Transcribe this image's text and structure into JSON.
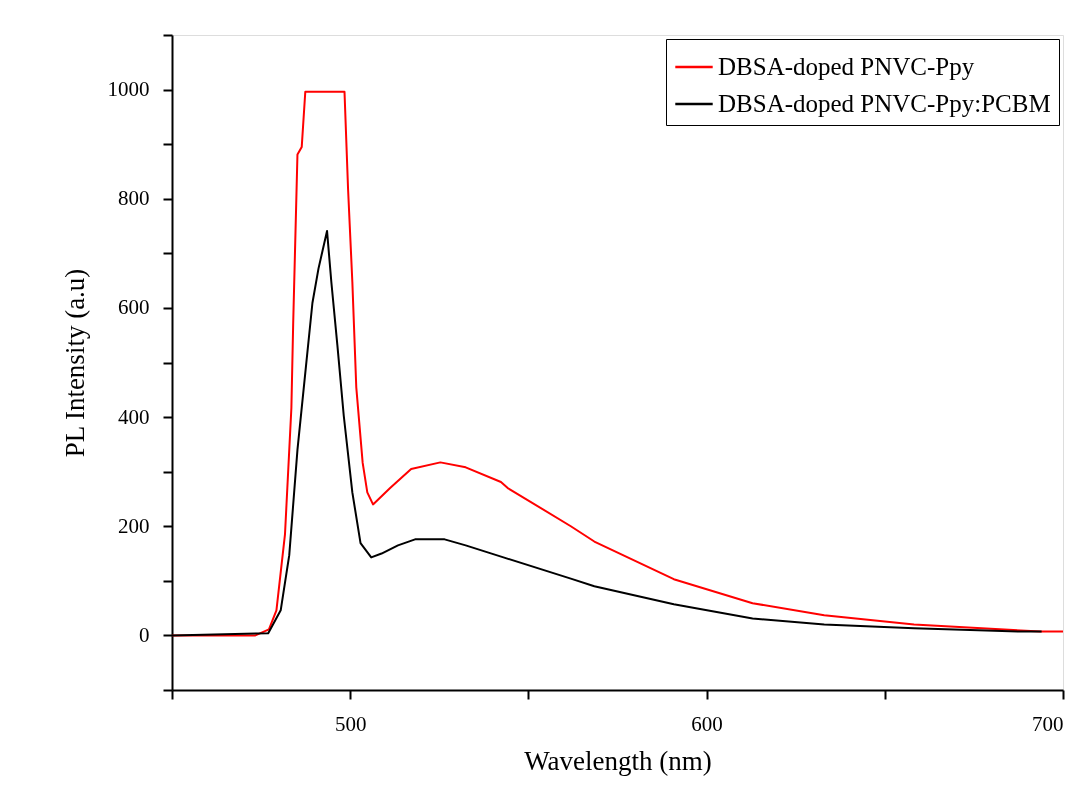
{
  "chart_data": {
    "type": "line",
    "xlabel": "Wavelength (nm)",
    "ylabel": "PL Intensity (a.u)",
    "xlim": [
      450,
      700
    ],
    "ylim": [
      -100,
      1100
    ],
    "xticks": [
      {
        "value": 450,
        "label": null
      },
      500,
      {
        "value": 550,
        "label": null
      },
      600,
      {
        "value": 650,
        "label": null
      },
      700
    ],
    "yticks": [
      {
        "value": -100,
        "label": null
      },
      0,
      {
        "value": 100,
        "label": null
      },
      200,
      {
        "value": 300,
        "label": null
      },
      400,
      {
        "value": 500,
        "label": null
      },
      600,
      {
        "value": 700,
        "label": null
      },
      800,
      {
        "value": 900,
        "label": null
      },
      1000,
      {
        "value": 1100,
        "label": null
      }
    ],
    "grid": false,
    "legend": "top right",
    "line_style": "solid",
    "marker": "none",
    "series": [
      {
        "name": "DBSA-doped PNVC-Ppy",
        "color": "#ff0000",
        "x": [
          450,
          473.4,
          477.2,
          479.3,
          481.7,
          483.5,
          484,
          485.2,
          486.4,
          487.4,
          498.4,
          499.4,
          500.6,
          501.7,
          503.5,
          504.8,
          506.4,
          511.2,
          517.1,
          525.3,
          532.4,
          542.3,
          544.2,
          561.9,
          568.5,
          590.8,
          612.9,
          633,
          658.2,
          693.7,
          700
        ],
        "values": [
          0,
          0,
          11,
          46,
          185,
          417,
          571,
          881,
          895,
          996,
          996,
          818,
          648,
          455,
          316,
          262,
          240,
          270,
          305,
          317,
          308,
          281,
          270,
          200,
          172,
          103,
          59,
          37,
          20,
          7,
          7
        ]
      },
      {
        "name": "DBSA-doped PNVC-Ppy:PCBM",
        "color": "#000000",
        "x": [
          450,
          477,
          480.5,
          482.9,
          485.2,
          487.6,
          489.4,
          491.1,
          493.5,
          494.7,
          496.4,
          498.2,
          500.6,
          502.9,
          505.9,
          508.8,
          513.4,
          518.2,
          526.5,
          532.4,
          543,
          561.9,
          568.5,
          590.8,
          612.9,
          633,
          658.2,
          688.7,
          694
        ],
        "values": [
          0,
          4,
          46,
          147,
          340,
          494,
          609,
          672,
          741,
          648,
          532,
          402,
          262,
          169,
          143,
          150,
          165,
          176,
          176,
          165,
          143,
          104,
          90,
          57,
          31,
          20,
          13,
          7,
          7
        ]
      }
    ]
  }
}
